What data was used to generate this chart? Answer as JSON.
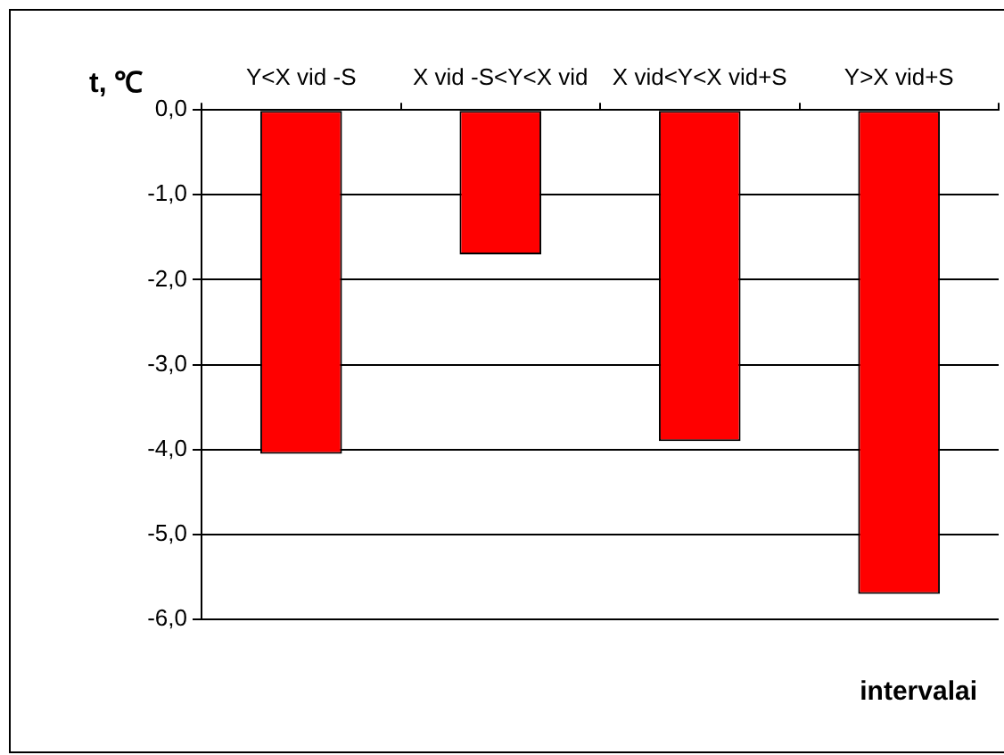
{
  "chart_data": {
    "type": "bar",
    "xlabel": "intervalai",
    "ylabel": "t, ℃",
    "categories": [
      "Y<X vid -S",
      "X vid -S<Y<X vid",
      "X vid<Y<X vid+S",
      "Y>X vid+S"
    ],
    "values": [
      -4.05,
      -1.7,
      -3.9,
      -5.7
    ],
    "color": "#ff0000",
    "ylim": [
      -6,
      0
    ],
    "yticks": [
      {
        "value": 0,
        "label": "0,0"
      },
      {
        "value": -1,
        "label": "-1,0"
      },
      {
        "value": -2,
        "label": "-2,0"
      },
      {
        "value": -3,
        "label": "-3,0"
      },
      {
        "value": -4,
        "label": "-4,0"
      },
      {
        "value": -5,
        "label": "-5,0"
      },
      {
        "value": -6,
        "label": "-6,0"
      }
    ],
    "grid": "y",
    "legend": false
  }
}
